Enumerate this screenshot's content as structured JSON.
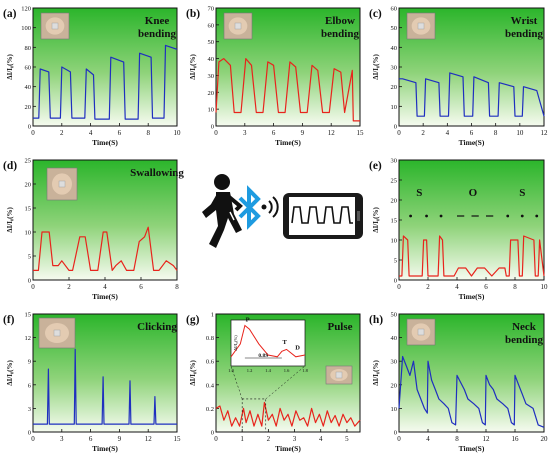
{
  "panels": [
    {
      "letter": "(a)",
      "title": [
        "Knee",
        "bending"
      ],
      "xlabel": "Time(S)",
      "ylabel": "ΔI/I₀(%)",
      "photo": "knee-photo"
    },
    {
      "letter": "(b)",
      "title": [
        "Elbow",
        "bending"
      ],
      "xlabel": "Time(S)",
      "ylabel": "ΔI/I₀(%)",
      "photo": "elbow-photo"
    },
    {
      "letter": "(c)",
      "title": [
        "Wrist",
        "bending"
      ],
      "xlabel": "Time(S)",
      "ylabel": "ΔI/I₀(%)",
      "photo": "wrist-photo"
    },
    {
      "letter": "(d)",
      "title": [
        "Swallowing"
      ],
      "xlabel": "Time(S)",
      "ylabel": "ΔI/I₀(%)",
      "photo": "face-photo"
    },
    {
      "letter": "(e)",
      "title": [],
      "xlabel": "Time(S)",
      "ylabel": "ΔI/I₀(%)",
      "annotations": [
        "S",
        "O",
        "S"
      ]
    },
    {
      "letter": "(f)",
      "title": [
        "Clicking"
      ],
      "xlabel": "Time(S)",
      "ylabel": "ΔI/I₀(%)",
      "photo": "mouse-photo"
    },
    {
      "letter": "(g)",
      "title": [
        "Pulse"
      ],
      "xlabel": "Time(S)",
      "ylabel": "ΔI/I₀(%)",
      "photo": "wrist-pulse-photo",
      "inset": {
        "ylabel": "ΔI/I₀(%)",
        "peaks": [
          "P",
          "T",
          "D"
        ],
        "interval": "0.8S",
        "xticks": [
          "1.0",
          "1.2",
          "1.4",
          "1.6",
          "1.8"
        ]
      }
    },
    {
      "letter": "(h)",
      "title": [
        "Neck",
        "bending"
      ],
      "xlabel": "Time(S)",
      "ylabel": "ΔI/I₀(%)",
      "photo": "neck-photo"
    }
  ],
  "center": {
    "icons": [
      "person-walking-icon",
      "bluetooth-icon",
      "wireless-signal-icon",
      "smartphone-icon"
    ]
  },
  "colors": {
    "blue": "#1f2fbf",
    "red": "#e8241c",
    "bg_top": "#2bb52b",
    "bg_bottom": "#f6fbf0"
  },
  "chart_data": [
    {
      "type": "line",
      "panel": "a",
      "xlim": [
        0,
        10
      ],
      "ylim": [
        0,
        120
      ],
      "xticks": [
        0,
        2,
        4,
        6,
        8,
        10
      ],
      "yticks": [
        0,
        20,
        40,
        60,
        80,
        100,
        120
      ],
      "series": [
        {
          "color": "#1f2fbf",
          "x": [
            0,
            0.4,
            0.5,
            1.1,
            1.2,
            1.9,
            2.0,
            2.6,
            2.7,
            3.6,
            3.7,
            4.2,
            4.3,
            5.3,
            5.4,
            6.3,
            6.4,
            7.3,
            7.4,
            8.2,
            8.3,
            9.1,
            9.2,
            10
          ],
          "y": [
            8,
            8,
            58,
            55,
            8,
            8,
            60,
            55,
            8,
            8,
            58,
            52,
            7,
            7,
            70,
            65,
            7,
            7,
            74,
            70,
            8,
            8,
            82,
            78
          ]
        }
      ]
    },
    {
      "type": "line",
      "panel": "b",
      "xlim": [
        0,
        15
      ],
      "ylim": [
        0,
        70
      ],
      "xticks": [
        0,
        3,
        6,
        9,
        12,
        15
      ],
      "yticks": [
        0,
        10,
        20,
        30,
        40,
        50,
        60,
        70
      ],
      "series": [
        {
          "color": "#e8241c",
          "x": [
            0,
            0.3,
            0.8,
            1.5,
            1.9,
            2.6,
            3.1,
            3.7,
            4.2,
            4.9,
            5.4,
            6.0,
            6.5,
            7.2,
            7.7,
            8.3,
            8.8,
            9.5,
            10.0,
            10.6,
            11.1,
            11.8,
            12.3,
            13.0,
            13.4,
            14.2,
            14.3,
            15
          ],
          "y": [
            8,
            38,
            40,
            36,
            8,
            8,
            40,
            36,
            8,
            8,
            38,
            36,
            8,
            8,
            38,
            35,
            8,
            8,
            36,
            33,
            8,
            8,
            34,
            32,
            8,
            33,
            3,
            3
          ]
        }
      ]
    },
    {
      "type": "line",
      "panel": "c",
      "xlim": [
        0,
        12
      ],
      "ylim": [
        0,
        60
      ],
      "xticks": [
        0,
        2,
        4,
        6,
        8,
        10,
        12
      ],
      "yticks": [
        0,
        10,
        20,
        30,
        40,
        50,
        60
      ],
      "series": [
        {
          "color": "#1f2fbf",
          "x": [
            0,
            0.3,
            1.4,
            1.5,
            2.1,
            2.2,
            3.3,
            3.4,
            4.1,
            4.2,
            5.3,
            5.4,
            6.1,
            6.2,
            7.4,
            7.5,
            8.2,
            8.3,
            9.5,
            9.6,
            10.2,
            10.3,
            11.4,
            12
          ],
          "y": [
            24,
            24,
            22,
            5,
            5,
            24,
            22,
            5,
            5,
            27,
            25,
            5,
            5,
            25,
            22,
            5,
            5,
            22,
            20,
            5,
            5,
            20,
            18,
            5
          ]
        }
      ]
    },
    {
      "type": "line",
      "panel": "d",
      "xlim": [
        0,
        8
      ],
      "ylim": [
        0,
        25
      ],
      "xticks": [
        0,
        2,
        4,
        6,
        8
      ],
      "yticks": [
        0,
        5,
        10,
        15,
        20,
        25
      ],
      "series": [
        {
          "color": "#e8241c",
          "x": [
            0,
            0.3,
            0.5,
            0.9,
            1.1,
            1.4,
            1.6,
            2.0,
            2.2,
            2.6,
            2.9,
            3.2,
            3.6,
            3.9,
            4.1,
            4.4,
            4.6,
            4.9,
            5.2,
            5.6,
            5.9,
            6.2,
            6.4,
            6.7,
            7.0,
            7.4,
            7.8,
            8
          ],
          "y": [
            2,
            2,
            10,
            10,
            3,
            3,
            4,
            2,
            2,
            9,
            9,
            2,
            2,
            10,
            10,
            2,
            3,
            4,
            2,
            2,
            8,
            9,
            11,
            2,
            2,
            4,
            3,
            2
          ]
        }
      ]
    },
    {
      "type": "line",
      "panel": "e",
      "xlim": [
        0,
        10
      ],
      "ylim": [
        0,
        30
      ],
      "xticks": [
        0,
        2,
        4,
        6,
        8,
        10
      ],
      "yticks": [
        0,
        5,
        10,
        15,
        20,
        25,
        30
      ],
      "series": [
        {
          "color": "#e8241c",
          "x": [
            0,
            0.2,
            0.3,
            0.6,
            0.7,
            1.6,
            1.7,
            1.9,
            2.0,
            2.7,
            2.8,
            3.0,
            3.1,
            3.8,
            4.1,
            4.6,
            5.0,
            5.4,
            5.9,
            6.4,
            6.9,
            7.3,
            7.4,
            7.6,
            7.7,
            8.2,
            8.3,
            8.5,
            8.6,
            9.3,
            9.4,
            9.6,
            9.7,
            10
          ],
          "y": [
            1,
            1,
            11,
            10,
            1,
            1,
            10,
            10,
            1,
            1,
            11,
            10,
            1,
            1,
            3,
            3,
            1,
            3,
            3,
            1,
            3,
            3,
            1,
            1,
            10,
            10,
            1,
            1,
            11,
            10,
            1,
            1,
            10,
            1
          ]
        }
      ]
    },
    {
      "type": "line",
      "panel": "f",
      "xlim": [
        0,
        15
      ],
      "ylim": [
        0,
        15
      ],
      "xticks": [
        0,
        3,
        6,
        9,
        12,
        15
      ],
      "yticks": [
        0,
        3,
        6,
        9,
        12,
        15
      ],
      "series": [
        {
          "color": "#1f2fbf",
          "x": [
            0,
            1.5,
            1.6,
            1.7,
            4.3,
            4.4,
            4.5,
            7.2,
            7.3,
            7.4,
            10.0,
            10.1,
            10.2,
            12.6,
            12.7,
            12.8,
            15
          ],
          "y": [
            1,
            1,
            8,
            1,
            1,
            10.5,
            1,
            1,
            7,
            1,
            1,
            6.5,
            1,
            1,
            4.5,
            1,
            1
          ]
        }
      ]
    },
    {
      "type": "line",
      "panel": "g",
      "xlim": [
        0,
        5.5
      ],
      "ylim": [
        0,
        1.0
      ],
      "xticks": [
        0,
        1,
        2,
        3,
        4,
        5
      ],
      "yticks": [
        0,
        0.2,
        0.4,
        0.6,
        0.8,
        1.0
      ],
      "series": [
        {
          "color": "#e8241c",
          "x": [
            0,
            0.15,
            0.3,
            0.45,
            0.6,
            0.75,
            0.9,
            1.05,
            1.15,
            1.3,
            1.45,
            1.6,
            1.75,
            1.85,
            2.0,
            2.15,
            2.3,
            2.45,
            2.6,
            2.75,
            2.9,
            3.05,
            3.2,
            3.35,
            3.5,
            3.65,
            3.8,
            3.95,
            4.1,
            4.25,
            4.4,
            4.55,
            4.7,
            4.85,
            5.0,
            5.15,
            5.3,
            5.5
          ],
          "y": [
            0.2,
            0.22,
            0.1,
            0.18,
            0.05,
            0.12,
            0.05,
            0.2,
            0.08,
            0.18,
            0.05,
            0.15,
            0.05,
            0.25,
            0.1,
            0.15,
            0.05,
            0.2,
            0.1,
            0.15,
            0.05,
            0.18,
            0.1,
            0.12,
            0.05,
            0.2,
            0.08,
            0.15,
            0.05,
            0.18,
            0.08,
            0.14,
            0.05,
            0.15,
            0.08,
            0.12,
            0.05,
            0.1
          ]
        }
      ],
      "inset": {
        "xlim": [
          1.0,
          1.8
        ],
        "ylim": [
          0,
          0.25
        ],
        "x": [
          1.0,
          1.1,
          1.15,
          1.2,
          1.3,
          1.4,
          1.5,
          1.55,
          1.6,
          1.7,
          1.8
        ],
        "y": [
          0.05,
          0.12,
          0.22,
          0.2,
          0.12,
          0.06,
          0.05,
          0.08,
          0.09,
          0.05,
          0.06
        ]
      }
    },
    {
      "type": "line",
      "panel": "h",
      "xlim": [
        0,
        20
      ],
      "ylim": [
        0,
        50
      ],
      "xticks": [
        0,
        4,
        8,
        12,
        16,
        20
      ],
      "yticks": [
        0,
        10,
        20,
        30,
        40,
        50
      ],
      "series": [
        {
          "color": "#1f2fbf",
          "x": [
            0,
            0.5,
            1.0,
            1.5,
            2.0,
            2.5,
            3.0,
            3.5,
            3.9,
            4.0,
            4.5,
            5.0,
            5.5,
            6.2,
            6.8,
            7.3,
            7.8,
            8.0,
            8.5,
            9.0,
            9.5,
            10.3,
            11.0,
            11.5,
            11.9,
            12.0,
            12.5,
            13.0,
            13.5,
            14.3,
            15.0,
            15.5,
            15.9,
            16.0,
            16.5,
            17.0,
            17.5,
            18.5,
            19.2,
            20
          ],
          "y": [
            10,
            32,
            28,
            24,
            30,
            18,
            14,
            10,
            8,
            30,
            22,
            18,
            14,
            12,
            10,
            4,
            3,
            24,
            21,
            18,
            14,
            12,
            10,
            4,
            3,
            24,
            20,
            18,
            14,
            12,
            10,
            4,
            3,
            24,
            20,
            16,
            12,
            10,
            3,
            2
          ]
        }
      ]
    }
  ]
}
